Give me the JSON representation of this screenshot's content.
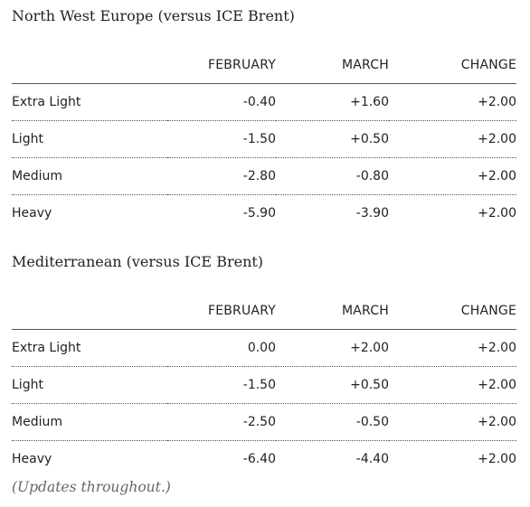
{
  "sections": [
    {
      "title": "North West Europe (versus ICE Brent)",
      "columns": [
        "",
        "FEBRUARY",
        "MARCH",
        "CHANGE"
      ],
      "rows": [
        {
          "grade": "Extra Light",
          "february": "-0.40",
          "march": "+1.60",
          "change": "+2.00"
        },
        {
          "grade": "Light",
          "february": "-1.50",
          "march": "+0.50",
          "change": "+2.00"
        },
        {
          "grade": "Medium",
          "february": "-2.80",
          "march": "-0.80",
          "change": "+2.00"
        },
        {
          "grade": "Heavy",
          "february": "-5.90",
          "march": "-3.90",
          "change": "+2.00"
        }
      ]
    },
    {
      "title": "Mediterranean (versus ICE Brent)",
      "columns": [
        "",
        "FEBRUARY",
        "MARCH",
        "CHANGE"
      ],
      "rows": [
        {
          "grade": "Extra Light",
          "february": "0.00",
          "march": "+2.00",
          "change": "+2.00"
        },
        {
          "grade": "Light",
          "february": "-1.50",
          "march": "+0.50",
          "change": "+2.00"
        },
        {
          "grade": "Medium",
          "february": "-2.50",
          "march": "-0.50",
          "change": "+2.00"
        },
        {
          "grade": "Heavy",
          "february": "-6.40",
          "march": "-4.40",
          "change": "+2.00"
        }
      ]
    }
  ],
  "footnote": "(Updates throughout.)"
}
